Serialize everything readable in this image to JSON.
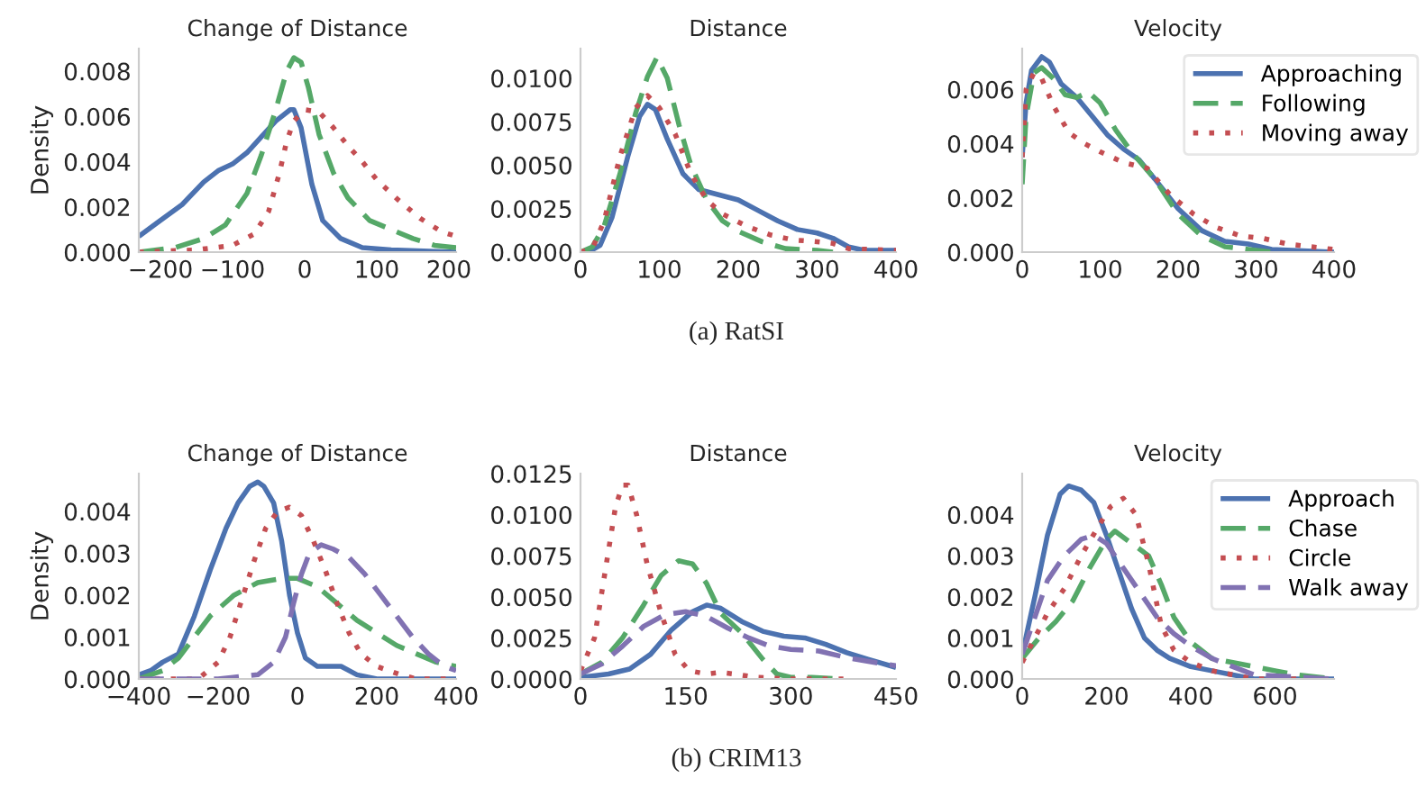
{
  "chart_data": [
    {
      "type": "line",
      "title": "Change of Distance",
      "ylabel": "Density",
      "annotations": [
        "(a) RatSI"
      ],
      "xlim": [
        -230,
        210
      ],
      "ylim": [
        0,
        0.009
      ],
      "xticks": [
        {
          "value": -200,
          "label": "−200"
        },
        {
          "value": -100,
          "label": "−100"
        },
        0,
        100,
        200
      ],
      "yticks": [
        {
          "value": 0,
          "label": "0.000"
        },
        {
          "value": 0.002,
          "label": "0.002"
        },
        {
          "value": 0.004,
          "label": "0.004"
        },
        {
          "value": 0.006,
          "label": "0.006"
        },
        {
          "value": 0.008,
          "label": "0.008"
        }
      ],
      "grid": false,
      "legend": false,
      "series": [
        {
          "color": "#4c72b0",
          "line_style": "solid",
          "x": [
            -230,
            -200,
            -170,
            -140,
            -120,
            -100,
            -80,
            -60,
            -40,
            -20,
            -15,
            -5,
            10,
            25,
            50,
            80,
            120,
            210
          ],
          "values": [
            0.0007,
            0.0014,
            0.0021,
            0.0031,
            0.0036,
            0.0039,
            0.0044,
            0.0051,
            0.0058,
            0.0063,
            0.0063,
            0.0055,
            0.003,
            0.0014,
            0.0006,
            0.0002,
            0.0001,
            0.0
          ]
        },
        {
          "color": "#55a868",
          "line_style": "dashed",
          "x": [
            -230,
            -180,
            -140,
            -110,
            -80,
            -60,
            -40,
            -25,
            -15,
            -5,
            5,
            20,
            40,
            60,
            90,
            120,
            150,
            180,
            210
          ],
          "values": [
            0.0,
            0.0002,
            0.0006,
            0.0012,
            0.0026,
            0.0043,
            0.0063,
            0.008,
            0.0086,
            0.0084,
            0.0073,
            0.0052,
            0.0035,
            0.0024,
            0.0014,
            0.001,
            0.0006,
            0.0003,
            0.0002
          ]
        },
        {
          "color": "#c44e52",
          "line_style": "dotted",
          "x": [
            -230,
            -150,
            -100,
            -70,
            -50,
            -35,
            -25,
            -15,
            0,
            20,
            40,
            60,
            80,
            100,
            130,
            160,
            190,
            210
          ],
          "values": [
            0.0,
            0.0001,
            0.0003,
            0.0008,
            0.0018,
            0.0035,
            0.0049,
            0.0058,
            0.0063,
            0.0062,
            0.0055,
            0.0047,
            0.004,
            0.0032,
            0.0023,
            0.0015,
            0.0009,
            0.0007
          ]
        }
      ]
    },
    {
      "type": "line",
      "title": "Distance",
      "xlim": [
        0,
        400
      ],
      "ylim": [
        0,
        0.0117
      ],
      "xticks": [
        0,
        100,
        200,
        300,
        400
      ],
      "yticks": [
        {
          "value": 0,
          "label": "0.0000"
        },
        {
          "value": 0.0025,
          "label": "0.0025"
        },
        {
          "value": 0.005,
          "label": "0.0050"
        },
        {
          "value": 0.0075,
          "label": "0.0075"
        },
        {
          "value": 0.01,
          "label": "0.0100"
        }
      ],
      "grid": false,
      "legend": false,
      "series": [
        {
          "color": "#4c72b0",
          "line_style": "solid",
          "x": [
            0,
            10,
            25,
            40,
            60,
            75,
            85,
            95,
            110,
            130,
            150,
            175,
            200,
            225,
            250,
            275,
            300,
            320,
            340,
            360,
            400
          ],
          "values": [
            0.0,
            0.0,
            0.0004,
            0.002,
            0.0055,
            0.0078,
            0.0085,
            0.0082,
            0.0065,
            0.0045,
            0.0036,
            0.0033,
            0.003,
            0.0024,
            0.0018,
            0.0013,
            0.0011,
            0.0008,
            0.0003,
            0.0001,
            0.0001
          ]
        },
        {
          "color": "#55a868",
          "line_style": "dashed",
          "x": [
            0,
            15,
            30,
            50,
            70,
            85,
            97,
            110,
            125,
            140,
            160,
            180,
            200,
            230,
            260,
            300,
            320
          ],
          "values": [
            0.0,
            0.0003,
            0.0015,
            0.0045,
            0.008,
            0.0101,
            0.0112,
            0.01,
            0.0073,
            0.005,
            0.003,
            0.0018,
            0.0012,
            0.0006,
            0.0002,
            0.0001,
            0.0
          ]
        },
        {
          "color": "#c44e52",
          "line_style": "dotted",
          "x": [
            0,
            15,
            30,
            50,
            70,
            85,
            100,
            120,
            140,
            160,
            180,
            210,
            240,
            270,
            300,
            320,
            340,
            400
          ],
          "values": [
            0.0,
            0.0002,
            0.0018,
            0.0055,
            0.0083,
            0.009,
            0.0083,
            0.0068,
            0.0045,
            0.003,
            0.0022,
            0.0015,
            0.001,
            0.0007,
            0.0006,
            0.0005,
            0.0002,
            0.0001
          ]
        }
      ]
    },
    {
      "type": "line",
      "title": "Velocity",
      "xlim": [
        0,
        400
      ],
      "ylim": [
        0,
        0.0075
      ],
      "xticks": [
        0,
        100,
        200,
        300,
        400
      ],
      "yticks": [
        {
          "value": 0,
          "label": "0.000"
        },
        {
          "value": 0.002,
          "label": "0.002"
        },
        {
          "value": 0.004,
          "label": "0.004"
        },
        {
          "value": 0.006,
          "label": "0.006"
        }
      ],
      "grid": false,
      "legend": "top right",
      "series": [
        {
          "name": "Approaching",
          "color": "#4c72b0",
          "line_style": "solid",
          "x": [
            0,
            5,
            12,
            25,
            35,
            50,
            70,
            90,
            110,
            130,
            150,
            170,
            200,
            230,
            260,
            290,
            320,
            400
          ],
          "values": [
            0.0035,
            0.0055,
            0.0067,
            0.0072,
            0.007,
            0.0062,
            0.0057,
            0.005,
            0.0043,
            0.0038,
            0.0034,
            0.0027,
            0.0016,
            0.0008,
            0.0004,
            0.0003,
            0.0001,
            0.0
          ]
        },
        {
          "name": "Following",
          "color": "#55a868",
          "line_style": "dashed",
          "x": [
            0,
            5,
            15,
            25,
            40,
            55,
            70,
            85,
            100,
            120,
            140,
            170,
            200,
            230,
            260,
            290,
            320
          ],
          "values": [
            0.0025,
            0.005,
            0.0066,
            0.0068,
            0.0064,
            0.0058,
            0.0057,
            0.0059,
            0.0055,
            0.0045,
            0.0037,
            0.0027,
            0.0014,
            0.0006,
            0.0002,
            0.0001,
            0.0
          ]
        },
        {
          "name": "Moving away",
          "color": "#c44e52",
          "line_style": "dotted",
          "x": [
            0,
            5,
            15,
            25,
            40,
            60,
            80,
            100,
            130,
            160,
            190,
            220,
            250,
            280,
            310,
            340,
            370,
            400
          ],
          "values": [
            0.0035,
            0.006,
            0.0066,
            0.0064,
            0.0054,
            0.0044,
            0.004,
            0.0037,
            0.0033,
            0.0031,
            0.0021,
            0.0014,
            0.0009,
            0.0006,
            0.0005,
            0.0003,
            0.0002,
            0.0001
          ]
        }
      ]
    },
    {
      "type": "line",
      "title": "Change of Distance",
      "ylabel": "Density",
      "annotations": [
        "(b) CRIM13"
      ],
      "xlim": [
        -400,
        400
      ],
      "ylim": [
        0,
        0.0049
      ],
      "xticks": [
        {
          "value": -400,
          "label": "−400"
        },
        {
          "value": -200,
          "label": "−200"
        },
        0,
        200,
        400
      ],
      "yticks": [
        {
          "value": 0,
          "label": "0.000"
        },
        {
          "value": 0.001,
          "label": "0.001"
        },
        {
          "value": 0.002,
          "label": "0.002"
        },
        {
          "value": 0.003,
          "label": "0.003"
        },
        {
          "value": 0.004,
          "label": "0.004"
        }
      ],
      "grid": false,
      "legend": false,
      "series": [
        {
          "color": "#4c72b0",
          "line_style": "solid",
          "x": [
            -400,
            -370,
            -340,
            -300,
            -260,
            -220,
            -180,
            -150,
            -120,
            -100,
            -85,
            -60,
            -40,
            -20,
            0,
            20,
            50,
            80,
            110,
            150,
            200,
            400
          ],
          "values": [
            0.0001,
            0.0002,
            0.0004,
            0.0006,
            0.0015,
            0.0026,
            0.0036,
            0.0042,
            0.0046,
            0.0047,
            0.0046,
            0.0042,
            0.0033,
            0.002,
            0.0011,
            0.0005,
            0.0003,
            0.0003,
            0.0003,
            0.0001,
            0.0,
            0.0
          ]
        },
        {
          "color": "#55a868",
          "line_style": "dashed",
          "x": [
            -400,
            -340,
            -300,
            -260,
            -220,
            -160,
            -100,
            -40,
            0,
            50,
            100,
            150,
            200,
            250,
            300,
            350,
            400
          ],
          "values": [
            0.0,
            0.0002,
            0.0005,
            0.001,
            0.0015,
            0.002,
            0.0023,
            0.0024,
            0.0024,
            0.0022,
            0.0018,
            0.0014,
            0.0011,
            0.0008,
            0.0006,
            0.0004,
            0.0003
          ]
        },
        {
          "color": "#c44e52",
          "line_style": "dotted",
          "x": [
            -400,
            -250,
            -200,
            -170,
            -140,
            -110,
            -80,
            -50,
            -20,
            10,
            40,
            70,
            100,
            130,
            160,
            200,
            260,
            300,
            400
          ],
          "values": [
            0.0,
            0.0,
            0.0004,
            0.001,
            0.0019,
            0.0028,
            0.0036,
            0.004,
            0.0041,
            0.0039,
            0.0033,
            0.0026,
            0.0018,
            0.0011,
            0.0006,
            0.0003,
            0.0001,
            0.0,
            0.0
          ]
        },
        {
          "color": "#8172b2",
          "line_style": "dashed",
          "x": [
            -400,
            -200,
            -100,
            -60,
            -30,
            -10,
            10,
            30,
            60,
            90,
            130,
            170,
            210,
            250,
            290,
            330,
            370,
            400
          ],
          "values": [
            0.0,
            0.0,
            0.0001,
            0.0004,
            0.001,
            0.0018,
            0.0025,
            0.003,
            0.0032,
            0.0031,
            0.0029,
            0.0025,
            0.002,
            0.0015,
            0.001,
            0.0006,
            0.0003,
            0.0002
          ]
        }
      ]
    },
    {
      "type": "line",
      "title": "Distance",
      "xlim": [
        0,
        450
      ],
      "ylim": [
        0,
        0.0125
      ],
      "xticks": [
        0,
        150,
        300,
        450
      ],
      "yticks": [
        {
          "value": 0,
          "label": "0.0000"
        },
        {
          "value": 0.0025,
          "label": "0.0025"
        },
        {
          "value": 0.005,
          "label": "0.0050"
        },
        {
          "value": 0.0075,
          "label": "0.0075"
        },
        {
          "value": 0.01,
          "label": "0.0100"
        },
        {
          "value": 0.0125,
          "label": "0.0125"
        }
      ],
      "grid": false,
      "legend": false,
      "series": [
        {
          "color": "#4c72b0",
          "line_style": "solid",
          "x": [
            0,
            40,
            70,
            100,
            130,
            160,
            180,
            200,
            230,
            260,
            290,
            320,
            350,
            380,
            410,
            450
          ],
          "values": [
            0.0001,
            0.0003,
            0.0006,
            0.0015,
            0.003,
            0.0041,
            0.0045,
            0.0043,
            0.0035,
            0.0029,
            0.0026,
            0.0025,
            0.0021,
            0.0016,
            0.0012,
            0.0007
          ]
        },
        {
          "color": "#55a868",
          "line_style": "dashed",
          "x": [
            0,
            30,
            60,
            90,
            115,
            140,
            160,
            180,
            200,
            230,
            260,
            280,
            300,
            330,
            370
          ],
          "values": [
            0.0003,
            0.001,
            0.0025,
            0.0045,
            0.0063,
            0.0072,
            0.007,
            0.0058,
            0.004,
            0.0028,
            0.0012,
            0.0003,
            0.0001,
            0.0001,
            0.0
          ]
        },
        {
          "color": "#c44e52",
          "line_style": "dotted",
          "x": [
            0,
            20,
            35,
            50,
            60,
            68,
            80,
            95,
            115,
            135,
            155,
            180,
            200,
            220,
            250,
            300,
            375
          ],
          "values": [
            0.0005,
            0.0025,
            0.0065,
            0.0105,
            0.0118,
            0.0118,
            0.01,
            0.007,
            0.004,
            0.0015,
            0.0005,
            0.0003,
            0.0004,
            0.0003,
            0.0001,
            0.0,
            0.0
          ]
        },
        {
          "color": "#8172b2",
          "line_style": "dashed",
          "x": [
            0,
            30,
            60,
            90,
            120,
            150,
            180,
            210,
            240,
            270,
            300,
            340,
            380,
            420,
            450
          ],
          "values": [
            0.0003,
            0.0009,
            0.002,
            0.0032,
            0.0039,
            0.0041,
            0.0038,
            0.0031,
            0.0025,
            0.002,
            0.0018,
            0.0017,
            0.0013,
            0.001,
            0.0008
          ]
        }
      ]
    },
    {
      "type": "line",
      "title": "Velocity",
      "xlim": [
        0,
        740
      ],
      "ylim": [
        0,
        0.005
      ],
      "xticks": [
        0,
        200,
        400,
        600
      ],
      "yticks": [
        {
          "value": 0,
          "label": "0.000"
        },
        {
          "value": 0.001,
          "label": "0.001"
        },
        {
          "value": 0.002,
          "label": "0.002"
        },
        {
          "value": 0.003,
          "label": "0.003"
        },
        {
          "value": 0.004,
          "label": "0.004"
        }
      ],
      "grid": false,
      "legend": "top right",
      "series": [
        {
          "name": "Approach",
          "color": "#4c72b0",
          "line_style": "solid",
          "x": [
            0,
            30,
            60,
            90,
            110,
            140,
            170,
            200,
            230,
            260,
            290,
            320,
            350,
            400,
            450,
            500,
            550,
            740
          ],
          "values": [
            0.0006,
            0.002,
            0.0035,
            0.0045,
            0.0047,
            0.0046,
            0.0043,
            0.0035,
            0.0026,
            0.0017,
            0.001,
            0.0007,
            0.0005,
            0.0003,
            0.0002,
            0.0001,
            0.0,
            0.0
          ]
        },
        {
          "name": "Chase",
          "color": "#55a868",
          "line_style": "dashed",
          "x": [
            0,
            40,
            80,
            120,
            160,
            200,
            220,
            260,
            300,
            330,
            360,
            400,
            450,
            500,
            550,
            600,
            650,
            740
          ],
          "values": [
            0.0005,
            0.001,
            0.0014,
            0.0019,
            0.0027,
            0.0034,
            0.0036,
            0.0033,
            0.003,
            0.0023,
            0.0015,
            0.0009,
            0.0005,
            0.0004,
            0.0003,
            0.0002,
            0.0001,
            0.0
          ]
        },
        {
          "name": "Circle",
          "color": "#c44e52",
          "line_style": "dotted",
          "x": [
            0,
            30,
            60,
            100,
            140,
            180,
            210,
            240,
            270,
            300,
            330,
            360,
            400,
            450,
            500,
            550,
            740
          ],
          "values": [
            0.0004,
            0.001,
            0.0016,
            0.0022,
            0.003,
            0.0037,
            0.0042,
            0.0044,
            0.004,
            0.0028,
            0.0013,
            0.0007,
            0.0004,
            0.0002,
            0.0001,
            0.0,
            0.0
          ]
        },
        {
          "name": "Walk away",
          "color": "#8172b2",
          "line_style": "dashed",
          "x": [
            0,
            30,
            60,
            100,
            140,
            170,
            200,
            240,
            280,
            320,
            360,
            400,
            450,
            500,
            550,
            740
          ],
          "values": [
            0.0006,
            0.0015,
            0.0024,
            0.003,
            0.0034,
            0.0035,
            0.0033,
            0.0027,
            0.0021,
            0.0015,
            0.0011,
            0.0008,
            0.0005,
            0.0003,
            0.0001,
            0.0
          ]
        }
      ]
    }
  ]
}
